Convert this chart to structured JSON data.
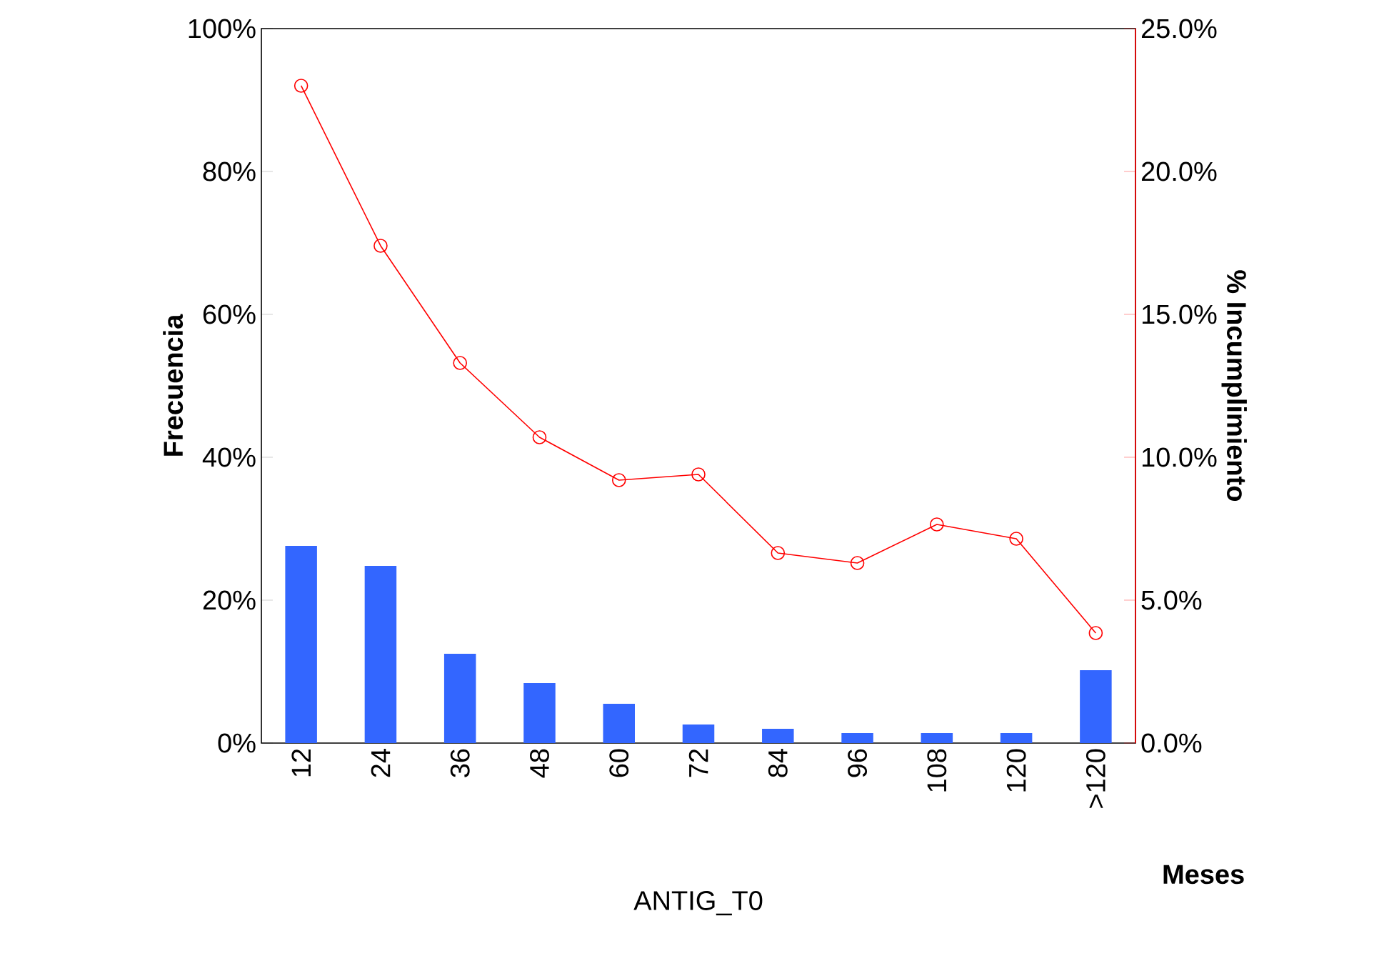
{
  "chart_data": {
    "type": "bar",
    "xlabel": "ANTIG_T0",
    "ylabel": "Frecuencia",
    "y2label": "% Incumplimiento",
    "annotations": [
      "Meses"
    ],
    "categories": [
      "12",
      "24",
      "36",
      "48",
      "60",
      "72",
      "84",
      "96",
      "108",
      "120",
      ">120"
    ],
    "series": [
      {
        "color": "#3366ff",
        "values": [
          27.6,
          24.8,
          12.5,
          8.4,
          5.5,
          2.6,
          2.0,
          1.4,
          1.4,
          1.4,
          10.2
        ]
      },
      {
        "type": "line",
        "axis": "y2",
        "color": "#ff0000",
        "marker": "circle",
        "values": [
          23.0,
          17.4,
          13.3,
          10.7,
          9.2,
          9.4,
          6.65,
          6.3,
          7.65,
          7.15,
          3.85
        ]
      }
    ],
    "ylim": [
      0,
      100
    ],
    "yticks": [
      {
        "value": 0,
        "label": "0%"
      },
      {
        "value": 20,
        "label": "20%"
      },
      {
        "value": 40,
        "label": "40%"
      },
      {
        "value": 60,
        "label": "60%"
      },
      {
        "value": 80,
        "label": "80%"
      },
      {
        "value": 100,
        "label": "100%"
      }
    ],
    "y2lim": [
      0,
      25
    ],
    "y2ticks": [
      {
        "value": 0,
        "label": "0.0%"
      },
      {
        "value": 5,
        "label": "5.0%"
      },
      {
        "value": 10,
        "label": "10.0%"
      },
      {
        "value": 15,
        "label": "15.0%"
      },
      {
        "value": 20,
        "label": "20.0%"
      },
      {
        "value": 25,
        "label": "25.0%"
      }
    ]
  }
}
